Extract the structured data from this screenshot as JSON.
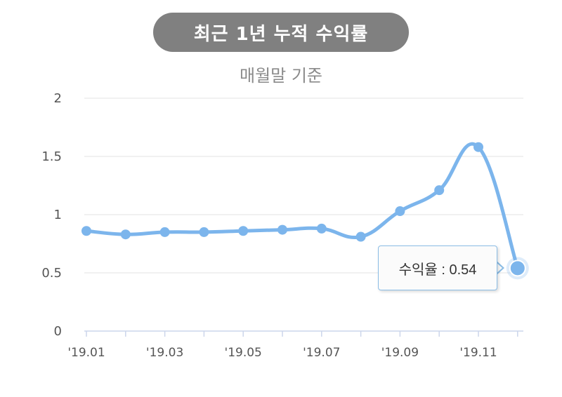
{
  "chart_data": {
    "type": "line",
    "title": "최근 1년 누적 수익률",
    "subtitle": "매월말 기준",
    "xlabel": "",
    "ylabel": "",
    "ylim": [
      0,
      2
    ],
    "y_ticks": [
      "0",
      "0.5",
      "1",
      "1.5",
      "2"
    ],
    "grid": true,
    "x": [
      "'19.01",
      "'19.02",
      "'19.03",
      "'19.04",
      "'19.05",
      "'19.06",
      "'19.07",
      "'19.08",
      "'19.09",
      "'19.10",
      "'19.11",
      "'19.12"
    ],
    "x_tick_labels": [
      "'19.01",
      "'19.03",
      "'19.05",
      "'19.07",
      "'19.09",
      "'19.11"
    ],
    "series": [
      {
        "values": [
          0.86,
          0.83,
          0.85,
          0.85,
          0.86,
          0.87,
          0.88,
          0.81,
          1.03,
          1.21,
          1.58,
          0.54
        ],
        "color": "#7cb5ec"
      }
    ],
    "tooltip": {
      "label": "수익율 : 0.54",
      "index": 11
    }
  }
}
